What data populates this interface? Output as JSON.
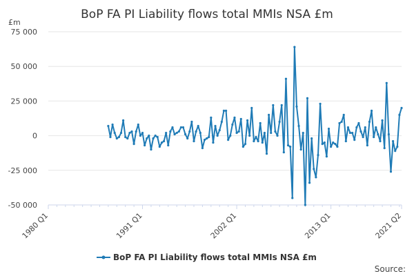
{
  "chart_data": {
    "type": "line",
    "title": "BoP FA PI Liability flows total MMIs NSA £m",
    "y_unit": "£m",
    "ylim": [
      -50000,
      75000
    ],
    "y_ticks": [
      -50000,
      -25000,
      0,
      25000,
      50000,
      75000
    ],
    "y_tick_labels": [
      "-50 000",
      "-25 000",
      "0",
      "25 000",
      "50 000",
      "75 000"
    ],
    "xlim": [
      1980.0,
      2021.25
    ],
    "x_ticks": [
      1980.0,
      1991.0,
      2002.0,
      2013.0,
      2021.25
    ],
    "x_tick_labels": [
      "1980 Q1",
      "1991 Q1",
      "2002 Q1",
      "2013 Q1",
      "2021 Q2"
    ],
    "grid": true,
    "legend_position": "bottom-center",
    "series": [
      {
        "name": "BoP FA PI Liability flows total MMIs NSA £m",
        "color": "#1f7bb6",
        "x": [
          1987.0,
          1987.25,
          1987.5,
          1987.75,
          1988.0,
          1988.25,
          1988.5,
          1988.75,
          1989.0,
          1989.25,
          1989.5,
          1989.75,
          1990.0,
          1990.25,
          1990.5,
          1990.75,
          1991.0,
          1991.25,
          1991.5,
          1991.75,
          1992.0,
          1992.25,
          1992.5,
          1992.75,
          1993.0,
          1993.25,
          1993.5,
          1993.75,
          1994.0,
          1994.25,
          1994.5,
          1994.75,
          1995.0,
          1995.25,
          1995.5,
          1995.75,
          1996.0,
          1996.25,
          1996.5,
          1996.75,
          1997.0,
          1997.25,
          1997.5,
          1997.75,
          1998.0,
          1998.25,
          1998.5,
          1998.75,
          1999.0,
          1999.25,
          1999.5,
          1999.75,
          2000.0,
          2000.25,
          2000.5,
          2000.75,
          2001.0,
          2001.25,
          2001.5,
          2001.75,
          2002.0,
          2002.25,
          2002.5,
          2002.75,
          2003.0,
          2003.25,
          2003.5,
          2003.75,
          2004.0,
          2004.25,
          2004.5,
          2004.75,
          2005.0,
          2005.25,
          2005.5,
          2005.75,
          2006.0,
          2006.25,
          2006.5,
          2006.75,
          2007.0,
          2007.25,
          2007.5,
          2007.75,
          2008.0,
          2008.25,
          2008.5,
          2008.75,
          2009.0,
          2009.25,
          2009.5,
          2009.75,
          2010.0,
          2010.25,
          2010.5,
          2010.75,
          2011.0,
          2011.25,
          2011.5,
          2011.75,
          2012.0,
          2012.25,
          2012.5,
          2012.75,
          2013.0,
          2013.25,
          2013.5,
          2013.75,
          2014.0,
          2014.25,
          2014.5,
          2014.75,
          2015.0,
          2015.25,
          2015.5,
          2015.75,
          2016.0,
          2016.25,
          2016.5,
          2016.75,
          2017.0,
          2017.25,
          2017.5,
          2017.75,
          2018.0,
          2018.25,
          2018.5,
          2018.75,
          2019.0,
          2019.25,
          2019.5,
          2019.75,
          2020.0,
          2020.25,
          2020.5,
          2020.75,
          2021.0,
          2021.25
        ],
        "y": [
          7000,
          -1000,
          8000,
          2000,
          -2000,
          -1000,
          2000,
          11000,
          -1000,
          -2000,
          2000,
          3000,
          -6000,
          3000,
          8000,
          0,
          2000,
          -7000,
          -2000,
          0,
          -10000,
          -2000,
          0,
          -1000,
          -8000,
          -5000,
          -4000,
          2000,
          -7000,
          3000,
          6000,
          1000,
          2000,
          3000,
          6000,
          6000,
          1000,
          -2000,
          3000,
          10000,
          -4000,
          3000,
          7000,
          2000,
          -9000,
          -3000,
          -2000,
          -1000,
          13000,
          -5000,
          7000,
          0,
          4000,
          10000,
          18000,
          18000,
          -3000,
          0,
          8000,
          13000,
          2000,
          3000,
          12000,
          -8000,
          -6000,
          11000,
          0,
          20000,
          -4000,
          -1000,
          -4000,
          9000,
          -5000,
          2000,
          -13000,
          15000,
          2000,
          22000,
          3000,
          0,
          10000,
          22000,
          -12000,
          41000,
          -7000,
          -8000,
          -45000,
          64000,
          21000,
          7000,
          -10000,
          2000,
          -50000,
          27000,
          -34000,
          -2000,
          -24000,
          -30000,
          -14000,
          23000,
          -6000,
          -5000,
          -15000,
          5000,
          -8000,
          -5000,
          -6000,
          -8000,
          9000,
          10000,
          15000,
          -4000,
          6000,
          2000,
          2000,
          -3000,
          6000,
          9000,
          3000,
          -1000,
          6000,
          -7000,
          10000,
          18000,
          -1000,
          6000,
          1000,
          -4000,
          11000,
          -9000,
          38000,
          1000,
          -26000,
          -4000,
          -11000,
          -8000,
          15000,
          20000
        ]
      }
    ]
  },
  "footer": {
    "source_label": "Source:"
  }
}
